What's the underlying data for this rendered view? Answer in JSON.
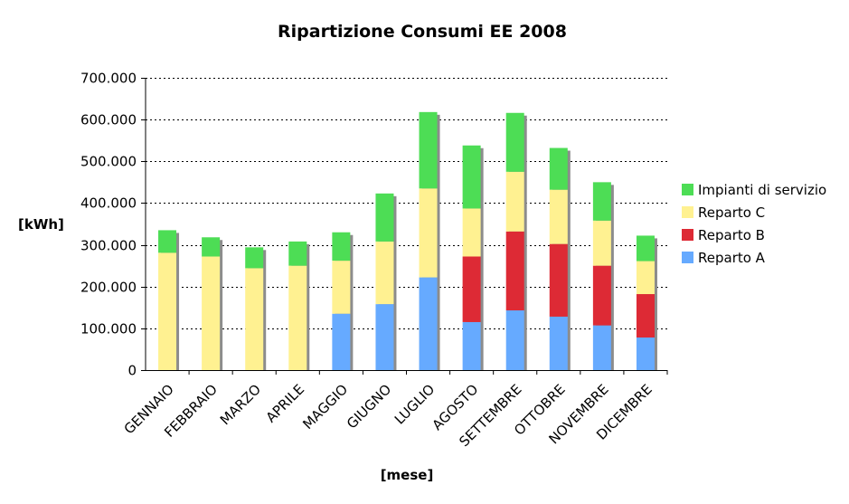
{
  "chart_data": {
    "type": "bar",
    "stacked": true,
    "title": "Ripartizione Consumi EE 2008",
    "xlabel": "[mese]",
    "ylabel": "[kWh]",
    "ylim": [
      0,
      700000
    ],
    "yticks": [
      0,
      100000,
      200000,
      300000,
      400000,
      500000,
      600000,
      700000
    ],
    "ytick_labels": [
      "0",
      "100.000",
      "200.000",
      "300.000",
      "400.000",
      "500.000",
      "600.000",
      "700.000"
    ],
    "grid": "horizontal dotted",
    "legend_position": "right",
    "categories": [
      "GENNAIO",
      "FEBBRAIO",
      "MARZO",
      "APRILE",
      "MAGGIO",
      "GIUGNO",
      "LUGLIO",
      "AGOSTO",
      "SETTEMBRE",
      "OTTOBRE",
      "NOVEMBRE",
      "DICEMBRE"
    ],
    "series": [
      {
        "name": "Reparto A",
        "color": "#66aaff",
        "values": [
          0,
          0,
          0,
          0,
          135000,
          158000,
          222000,
          115000,
          143000,
          128000,
          107000,
          78000
        ]
      },
      {
        "name": "Reparto B",
        "color": "#dd2a35",
        "values": [
          0,
          0,
          0,
          0,
          0,
          0,
          0,
          157000,
          189000,
          174000,
          143000,
          104000
        ]
      },
      {
        "name": "Reparto C",
        "color": "#fff191",
        "values": [
          281000,
          272000,
          244000,
          250000,
          127000,
          150000,
          213000,
          115000,
          143000,
          130000,
          108000,
          79000
        ]
      },
      {
        "name": "Impianti di servizio",
        "color": "#4ddd55",
        "values": [
          54000,
          46000,
          50000,
          58000,
          68000,
          115000,
          183000,
          151000,
          141000,
          100000,
          92000,
          61000
        ]
      }
    ],
    "legend_order": [
      "Impianti di servizio",
      "Reparto C",
      "Reparto B",
      "Reparto A"
    ]
  }
}
